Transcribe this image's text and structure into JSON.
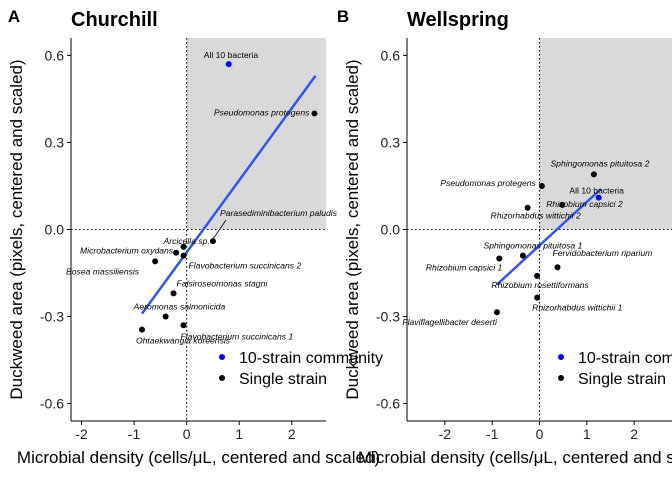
{
  "colors": {
    "community": "#0000ff",
    "single": "#000000",
    "fit": "#3155f5",
    "shade": "#d9d9d9"
  },
  "legend": {
    "items": [
      {
        "label": "10-strain community",
        "color": "#0000ff"
      },
      {
        "label": "Single strain",
        "color": "#000000"
      }
    ]
  },
  "chart_data": [
    {
      "type": "scatter",
      "panel_label": "A",
      "title": "Churchill",
      "xlabel": "Microbial density (cells/μL, centered and scaled)",
      "ylabel": "Duckweed area (pixels, centered and scaled)",
      "xlim": [
        -2.2,
        2.65
      ],
      "ylim": [
        -0.66,
        0.66
      ],
      "xticks": [
        -2,
        -1,
        0,
        1,
        2
      ],
      "yticks": [
        -0.6,
        -0.3,
        0.0,
        0.3,
        0.6
      ],
      "xtick_labels": [
        "-2",
        "-1",
        "0",
        "1",
        "2"
      ],
      "ytick_labels": [
        "-0.6",
        "-0.3",
        "0.0",
        "0.3",
        "0.6"
      ],
      "reference_lines": {
        "x": 0,
        "y": 0
      },
      "shaded_quadrant": "upper-right",
      "regression_line": {
        "x": [
          -0.85,
          2.45
        ],
        "y": [
          -0.29,
          0.53
        ]
      },
      "grid": false,
      "points": [
        {
          "x": 0.8,
          "y": 0.57,
          "group": "community",
          "label": "All 10 bacteria"
        },
        {
          "x": 2.43,
          "y": 0.4,
          "group": "single",
          "label": "Pseudomonas protegens"
        },
        {
          "x": 0.5,
          "y": -0.04,
          "group": "single",
          "label": "Parasediminibacterium paludis"
        },
        {
          "x": -0.06,
          "y": -0.06,
          "group": "single",
          "label": "Arcicella sp."
        },
        {
          "x": -0.2,
          "y": -0.08,
          "group": "single",
          "label": "Microbacterium oxydans"
        },
        {
          "x": -0.06,
          "y": -0.09,
          "group": "single",
          "label": "Flavobacterium succinicans 2"
        },
        {
          "x": -0.6,
          "y": -0.11,
          "group": "single",
          "label": "Bosea massiliensis"
        },
        {
          "x": -0.25,
          "y": -0.22,
          "group": "single",
          "label": "Falsiroseomonas stagni"
        },
        {
          "x": -0.4,
          "y": -0.3,
          "group": "single",
          "label": "Aeromonas salmonicida"
        },
        {
          "x": -0.06,
          "y": -0.33,
          "group": "single",
          "label": "Flavobacterium succinicans 1"
        },
        {
          "x": -0.85,
          "y": -0.345,
          "group": "single",
          "label": "Ohtaekwangia koreensis"
        }
      ]
    },
    {
      "type": "scatter",
      "panel_label": "B",
      "title": "Wellspring",
      "xlabel": "Microbial density (cells/μL, centered and scaled)",
      "ylabel": "Duckweed area (pixels, centered and scaled)",
      "xlim": [
        -2.8,
        2.8
      ],
      "ylim": [
        -0.66,
        0.66
      ],
      "xticks": [
        -2,
        -1,
        0,
        1,
        2
      ],
      "yticks": [
        -0.6,
        -0.3,
        0.0,
        0.3,
        0.6
      ],
      "xtick_labels": [
        "-2",
        "-1",
        "0",
        "1",
        "2"
      ],
      "ytick_labels": [
        "-0.6",
        "-0.3",
        "0.0",
        "0.3",
        "0.6"
      ],
      "reference_lines": {
        "x": 0,
        "y": 0
      },
      "shaded_quadrant": "upper-right",
      "regression_line": {
        "x": [
          -0.9,
          1.3
        ],
        "y": [
          -0.19,
          0.14
        ]
      },
      "grid": false,
      "points": [
        {
          "x": 1.25,
          "y": 0.11,
          "group": "community",
          "label": "All 10 bacteria"
        },
        {
          "x": 1.15,
          "y": 0.19,
          "group": "single",
          "label": "Sphingomonas pituitosa 2"
        },
        {
          "x": 0.05,
          "y": 0.15,
          "group": "single",
          "label": "Pseudomonas protegens"
        },
        {
          "x": 0.48,
          "y": 0.085,
          "group": "single",
          "label": "Rhizobium capsici 2"
        },
        {
          "x": -0.25,
          "y": 0.075,
          "group": "single",
          "label": "Rhizorhabdus wittichii 2"
        },
        {
          "x": -0.35,
          "y": -0.09,
          "group": "single",
          "label": "Sphingomonas pituitosa 1"
        },
        {
          "x": -0.85,
          "y": -0.1,
          "group": "single",
          "label": "Rhizobium capsici 1"
        },
        {
          "x": 0.38,
          "y": -0.13,
          "group": "single",
          "label": "Fervidobacterium riparium"
        },
        {
          "x": -0.05,
          "y": -0.16,
          "group": "single",
          "label": "Rhizobium rosettiformans"
        },
        {
          "x": -0.05,
          "y": -0.235,
          "group": "single",
          "label": "Rhizorhabdus wittichii 1"
        },
        {
          "x": -0.9,
          "y": -0.285,
          "group": "single",
          "label": "Flaviflagellibacter deserti"
        }
      ]
    }
  ]
}
